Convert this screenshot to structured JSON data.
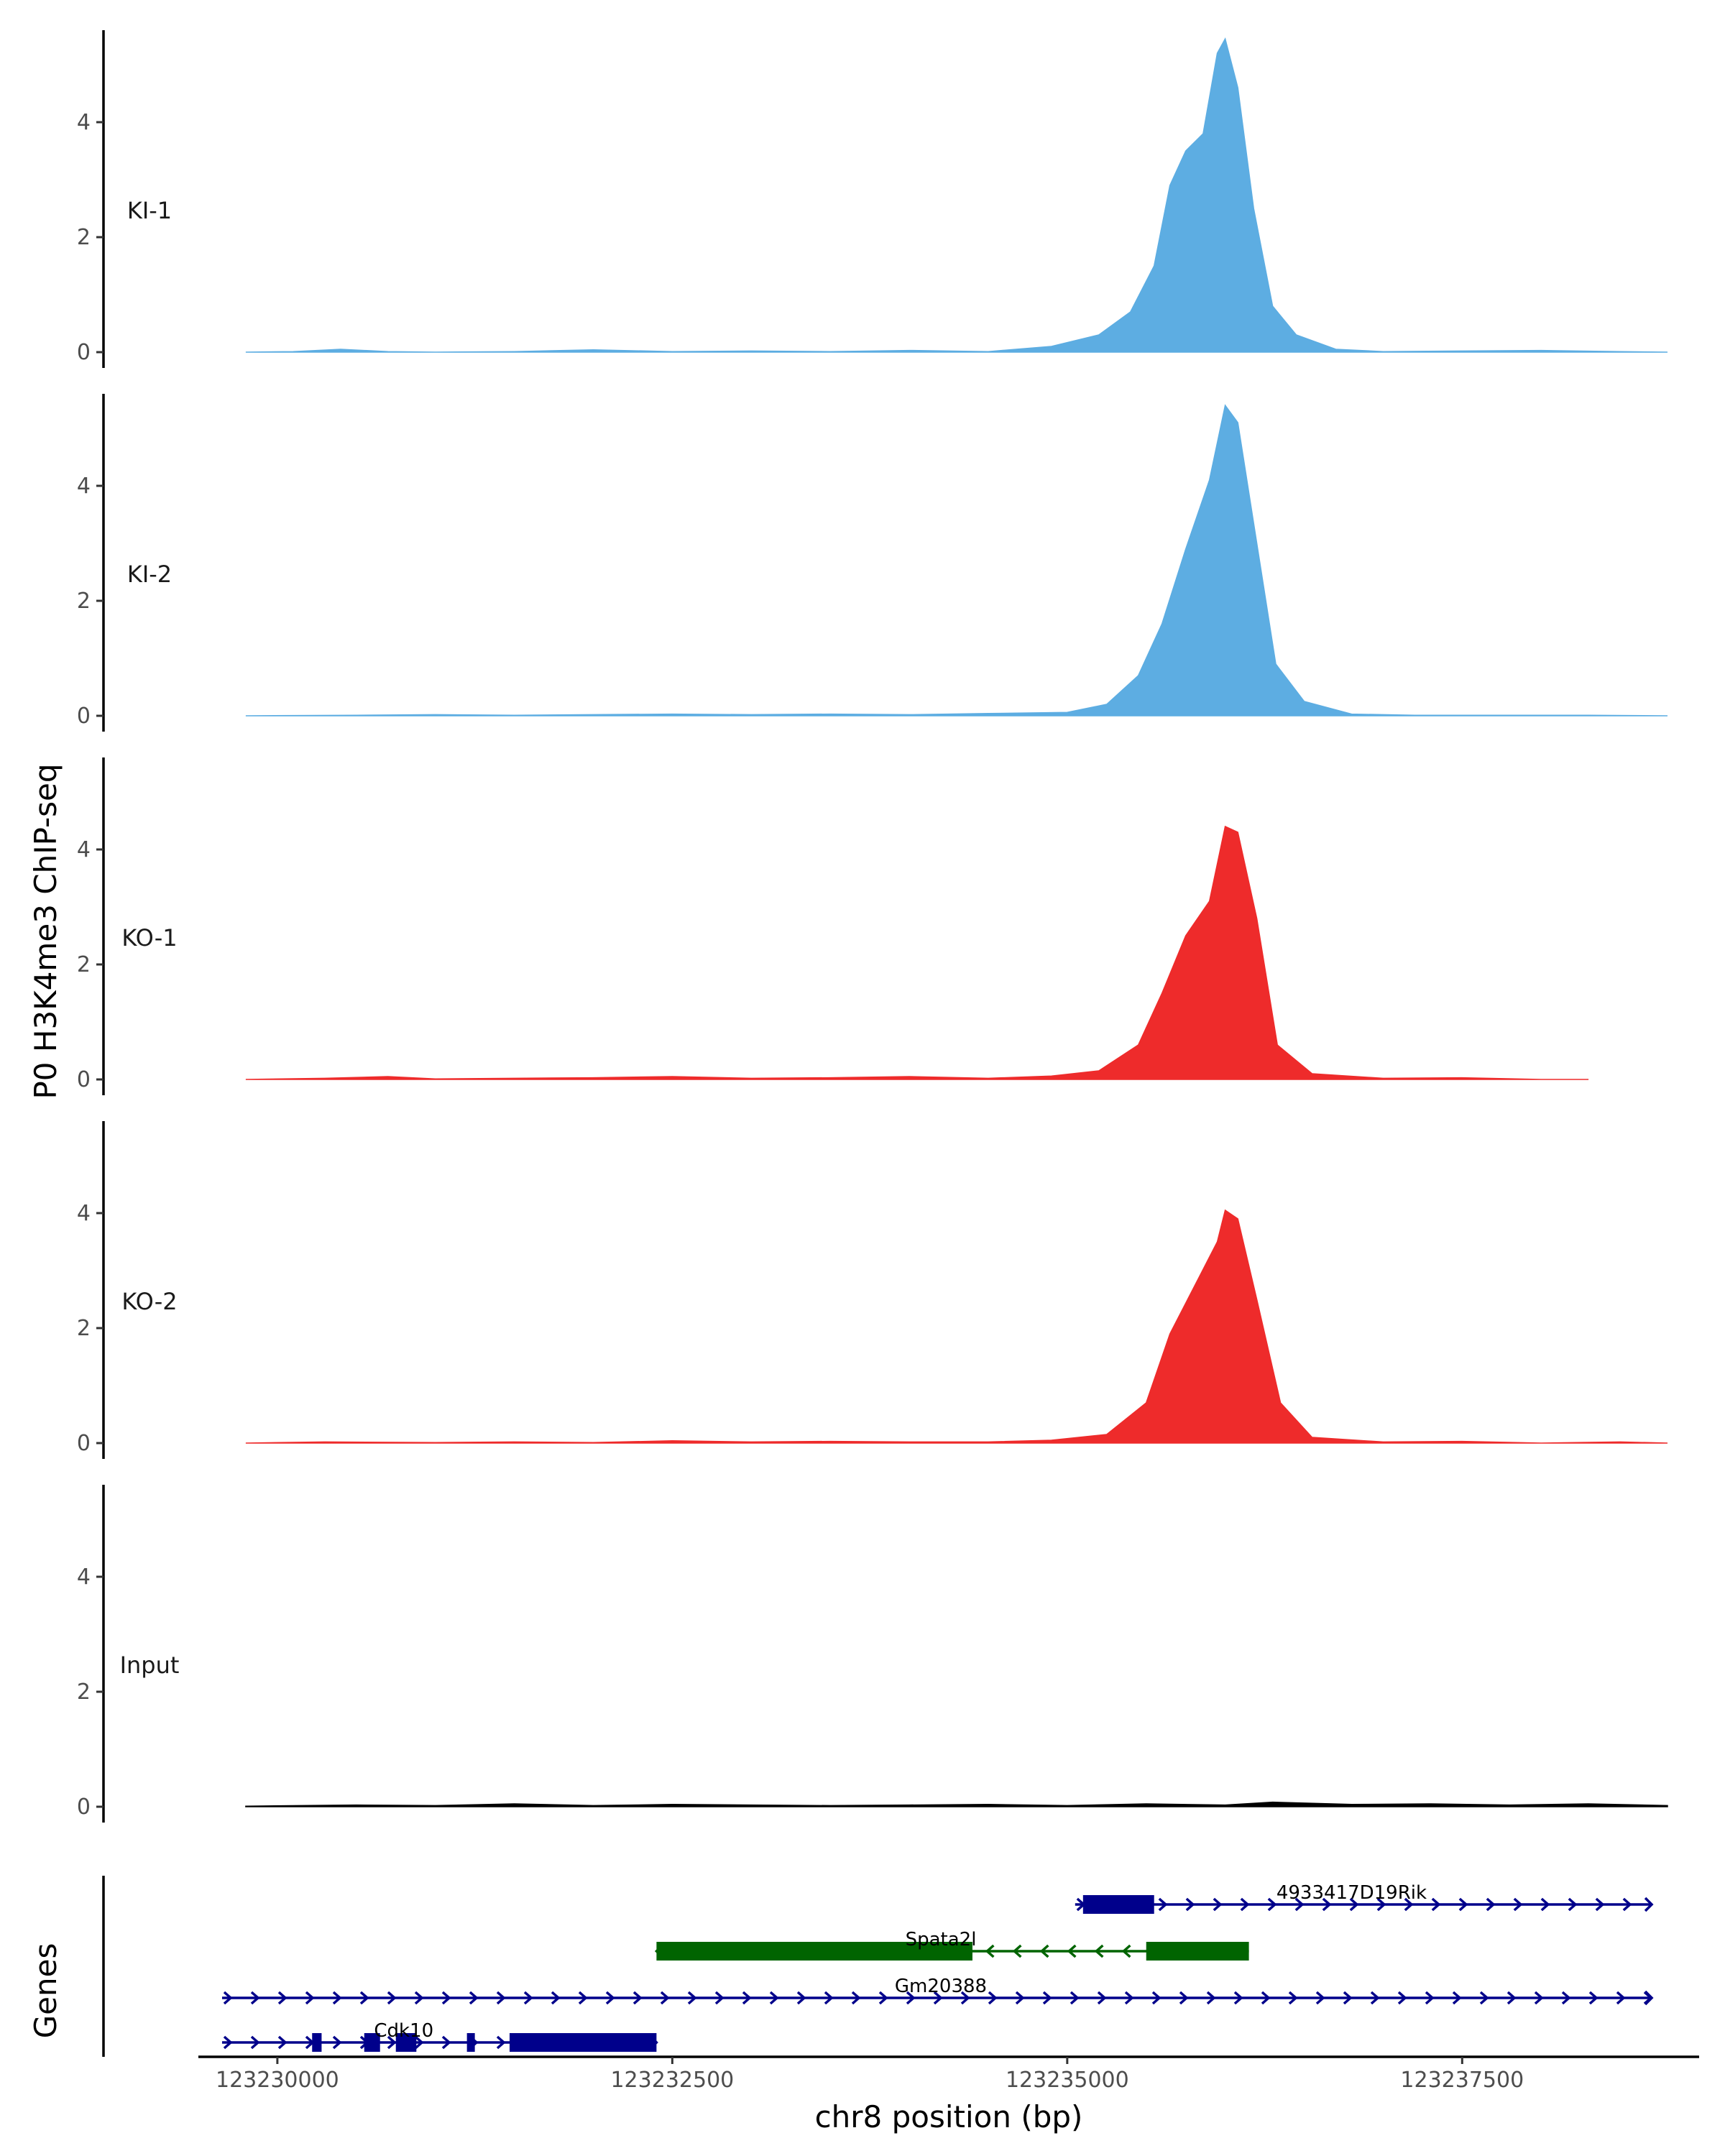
{
  "chart_data": {
    "type": "area",
    "ylabel": "P0 H3K4me3 ChIP-seq",
    "genes_label": "Genes",
    "xlabel": "chr8 position (bp)",
    "xlim": [
      123229500,
      123239000
    ],
    "ylim": [
      0,
      5.6
    ],
    "yticks": [
      0,
      2,
      4
    ],
    "ytick_labels": [
      "0",
      "2",
      "4"
    ],
    "xticks": [
      123230000,
      123232500,
      123235000,
      123237500
    ],
    "xtick_labels": [
      "123230000",
      "123232500",
      "123235000",
      "123237500"
    ],
    "tracks": [
      {
        "name": "KI-1",
        "color": "#5dade2",
        "points": [
          [
            123229800,
            0
          ],
          [
            123230100,
            0.01
          ],
          [
            123230400,
            0.05
          ],
          [
            123230700,
            0.01
          ],
          [
            123231000,
            0
          ],
          [
            123231500,
            0.01
          ],
          [
            123232000,
            0.04
          ],
          [
            123232500,
            0.01
          ],
          [
            123233000,
            0.02
          ],
          [
            123233500,
            0.01
          ],
          [
            123234000,
            0.03
          ],
          [
            123234500,
            0.01
          ],
          [
            123234900,
            0.1
          ],
          [
            123235200,
            0.3
          ],
          [
            123235400,
            0.7
          ],
          [
            123235550,
            1.5
          ],
          [
            123235650,
            2.9
          ],
          [
            123235750,
            3.5
          ],
          [
            123235860,
            3.8
          ],
          [
            123235950,
            5.2
          ],
          [
            123236000,
            5.45
          ],
          [
            123236080,
            4.6
          ],
          [
            123236180,
            2.5
          ],
          [
            123236300,
            0.8
          ],
          [
            123236450,
            0.3
          ],
          [
            123236700,
            0.05
          ],
          [
            123237000,
            0.01
          ],
          [
            123237500,
            0.02
          ],
          [
            123238000,
            0.03
          ],
          [
            123238500,
            0.01
          ],
          [
            123238800,
            0
          ]
        ]
      },
      {
        "name": "KI-2",
        "color": "#5dade2",
        "points": [
          [
            123229800,
            0
          ],
          [
            123230500,
            0.01
          ],
          [
            123231000,
            0.02
          ],
          [
            123231500,
            0.01
          ],
          [
            123232000,
            0.02
          ],
          [
            123232500,
            0.03
          ],
          [
            123233000,
            0.02
          ],
          [
            123233500,
            0.03
          ],
          [
            123234000,
            0.02
          ],
          [
            123234500,
            0.04
          ],
          [
            123235000,
            0.06
          ],
          [
            123235250,
            0.2
          ],
          [
            123235450,
            0.7
          ],
          [
            123235600,
            1.6
          ],
          [
            123235750,
            2.9
          ],
          [
            123235900,
            4.1
          ],
          [
            123236000,
            5.4
          ],
          [
            123236080,
            5.1
          ],
          [
            123236200,
            3.0
          ],
          [
            123236320,
            0.9
          ],
          [
            123236500,
            0.25
          ],
          [
            123236800,
            0.03
          ],
          [
            123237200,
            0.01
          ],
          [
            123237800,
            0.01
          ],
          [
            123238300,
            0.01
          ],
          [
            123238800,
            0
          ]
        ]
      },
      {
        "name": "KO-1",
        "color": "#ee2b2b",
        "points": [
          [
            123229800,
            0
          ],
          [
            123230300,
            0.02
          ],
          [
            123230700,
            0.05
          ],
          [
            123231000,
            0.01
          ],
          [
            123231500,
            0.02
          ],
          [
            123232000,
            0.03
          ],
          [
            123232500,
            0.05
          ],
          [
            123233000,
            0.02
          ],
          [
            123233500,
            0.03
          ],
          [
            123234000,
            0.05
          ],
          [
            123234500,
            0.02
          ],
          [
            123234900,
            0.06
          ],
          [
            123235200,
            0.15
          ],
          [
            123235450,
            0.6
          ],
          [
            123235600,
            1.5
          ],
          [
            123235750,
            2.5
          ],
          [
            123235900,
            3.1
          ],
          [
            123236000,
            4.4
          ],
          [
            123236080,
            4.3
          ],
          [
            123236200,
            2.8
          ],
          [
            123236330,
            0.6
          ],
          [
            123236550,
            0.1
          ],
          [
            123237000,
            0.02
          ],
          [
            123237500,
            0.03
          ],
          [
            123238000,
            0
          ],
          [
            123238300,
            0
          ]
        ]
      },
      {
        "name": "KO-2",
        "color": "#ee2b2b",
        "points": [
          [
            123229800,
            0
          ],
          [
            123230300,
            0.02
          ],
          [
            123231000,
            0.01
          ],
          [
            123231500,
            0.02
          ],
          [
            123232000,
            0.01
          ],
          [
            123232500,
            0.04
          ],
          [
            123233000,
            0.02
          ],
          [
            123233500,
            0.03
          ],
          [
            123234000,
            0.02
          ],
          [
            123234500,
            0.02
          ],
          [
            123234900,
            0.05
          ],
          [
            123235250,
            0.15
          ],
          [
            123235500,
            0.7
          ],
          [
            123235650,
            1.9
          ],
          [
            123235800,
            2.7
          ],
          [
            123235950,
            3.5
          ],
          [
            123236000,
            4.05
          ],
          [
            123236080,
            3.9
          ],
          [
            123236200,
            2.5
          ],
          [
            123236350,
            0.7
          ],
          [
            123236550,
            0.1
          ],
          [
            123237000,
            0.02
          ],
          [
            123237500,
            0.03
          ],
          [
            123238000,
            0
          ],
          [
            123238500,
            0.02
          ],
          [
            123238800,
            0
          ]
        ]
      },
      {
        "name": "Input",
        "color": "#000000",
        "points": [
          [
            123229800,
            0.01
          ],
          [
            123230500,
            0.03
          ],
          [
            123231000,
            0.02
          ],
          [
            123231500,
            0.05
          ],
          [
            123232000,
            0.02
          ],
          [
            123232500,
            0.04
          ],
          [
            123233000,
            0.03
          ],
          [
            123233500,
            0.02
          ],
          [
            123234000,
            0.03
          ],
          [
            123234500,
            0.04
          ],
          [
            123235000,
            0.02
          ],
          [
            123235500,
            0.05
          ],
          [
            123236000,
            0.03
          ],
          [
            123236300,
            0.08
          ],
          [
            123236800,
            0.04
          ],
          [
            123237300,
            0.05
          ],
          [
            123237800,
            0.03
          ],
          [
            123238300,
            0.05
          ],
          [
            123238800,
            0.02
          ]
        ]
      }
    ],
    "genes": [
      {
        "name": "4933417D19Rik",
        "strand": "+",
        "color": "#00008b",
        "row": 0,
        "start": 123235050,
        "end": 123238700,
        "exons": [
          [
            123235100,
            123235550
          ]
        ],
        "label_pos": 123236800
      },
      {
        "name": "Spata2l",
        "strand": "-",
        "color": "#006400",
        "row": 1,
        "start": 123232400,
        "end": 123236150,
        "exons": [
          [
            123232400,
            123234400
          ],
          [
            123235500,
            123236150
          ]
        ],
        "label_pos": 123234200
      },
      {
        "name": "Gm20388",
        "strand": "+",
        "color": "#00008b",
        "row": 2,
        "start": 123229650,
        "end": 123238700,
        "exons": [],
        "label_pos": 123234200
      },
      {
        "name": "Cdk10",
        "strand": "+",
        "color": "#00008b",
        "row": 3,
        "start": 123229650,
        "end": 123232400,
        "exons": [
          [
            123230220,
            123230280
          ],
          [
            123230550,
            123230650
          ],
          [
            123230750,
            123230880
          ],
          [
            123231200,
            123231250
          ],
          [
            123231470,
            123232400
          ]
        ],
        "label_pos": 123230800
      }
    ]
  }
}
